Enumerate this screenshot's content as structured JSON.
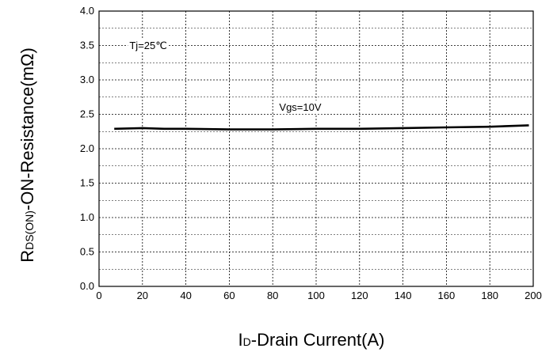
{
  "chart_data": {
    "type": "line",
    "title": "",
    "xlabel_main": "I",
    "xlabel_sub": "D",
    "xlabel_rest": "-Drain Current(A)",
    "ylabel_main": "R",
    "ylabel_sub": "DS(ON)",
    "ylabel_rest": "-ON-Resistance(mΩ)",
    "xlim": [
      0,
      200
    ],
    "ylim": [
      0.0,
      4.0
    ],
    "x_ticks": [
      0,
      20,
      40,
      60,
      80,
      100,
      120,
      140,
      160,
      180,
      200
    ],
    "x_tick_labels": [
      "0",
      "20",
      "40",
      "60",
      "80",
      "100",
      "120",
      "140",
      "160",
      "180",
      "200"
    ],
    "y_ticks": [
      0.0,
      0.5,
      1.0,
      1.5,
      2.0,
      2.5,
      3.0,
      3.5,
      4.0
    ],
    "y_tick_labels": [
      "0.0",
      "0.5",
      "1.0",
      "1.5",
      "2.0",
      "2.5",
      "3.0",
      "3.5",
      "4.0"
    ],
    "grid": true,
    "annotations": [
      {
        "text": "Tj=25℃",
        "x": 14,
        "y": 3.45
      },
      {
        "text": "Vgs=10V",
        "x": 83,
        "y": 2.55
      }
    ],
    "series": [
      {
        "color": "#000000",
        "x": [
          7,
          20,
          30,
          40,
          60,
          80,
          100,
          120,
          140,
          160,
          180,
          198
        ],
        "y": [
          2.29,
          2.3,
          2.29,
          2.29,
          2.28,
          2.28,
          2.29,
          2.29,
          2.3,
          2.31,
          2.32,
          2.34
        ]
      }
    ]
  }
}
